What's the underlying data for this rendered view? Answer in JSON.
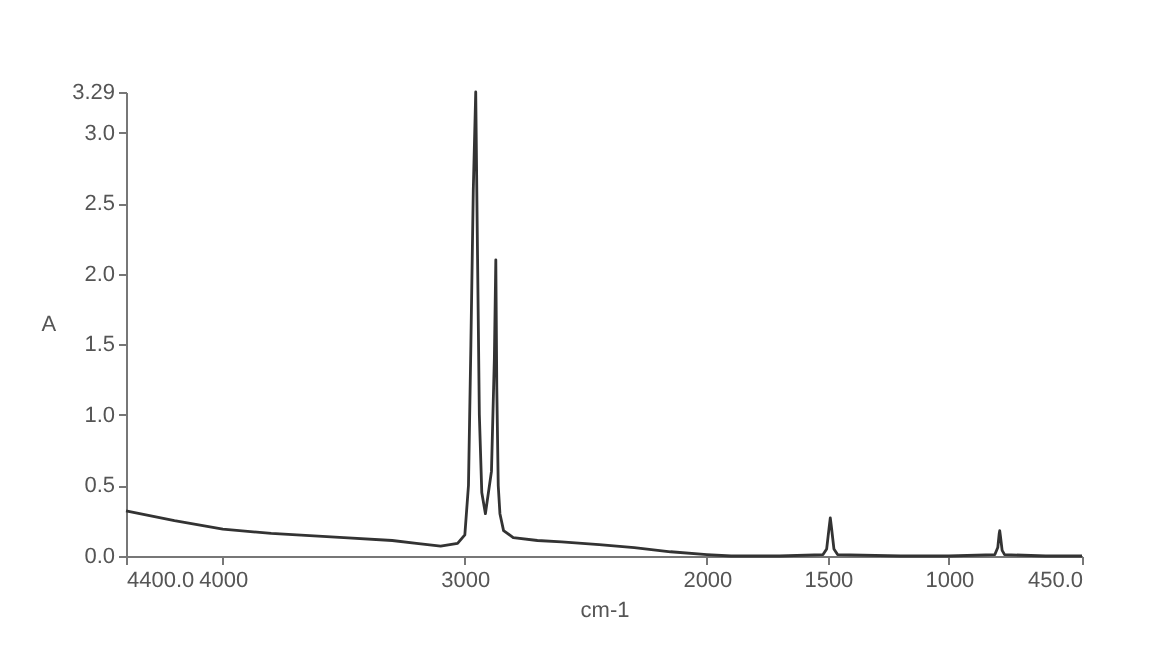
{
  "chart_data": {
    "type": "line",
    "xlabel": "cm-1",
    "ylabel": "A",
    "x": [
      4400,
      4200,
      4000,
      3800,
      3500,
      3300,
      3200,
      3100,
      3030,
      3000,
      2985,
      2975,
      2965,
      2955,
      2948,
      2940,
      2930,
      2915,
      2890,
      2878,
      2872,
      2868,
      2862,
      2855,
      2840,
      2800,
      2700,
      2600,
      2445,
      2300,
      2150,
      2000,
      1900,
      1700,
      1520,
      1505,
      1495,
      1490,
      1485,
      1475,
      1460,
      1200,
      1000,
      810,
      798,
      792,
      790,
      787,
      780,
      770,
      600,
      450
    ],
    "series": [
      {
        "color": "#333333",
        "values": [
          0.32,
          0.25,
          0.19,
          0.16,
          0.13,
          0.11,
          0.09,
          0.07,
          0.09,
          0.15,
          0.5,
          1.5,
          2.6,
          3.29,
          2.2,
          1.0,
          0.45,
          0.3,
          0.6,
          1.4,
          2.1,
          1.2,
          0.5,
          0.3,
          0.18,
          0.13,
          0.11,
          0.1,
          0.08,
          0.06,
          0.03,
          0.01,
          0,
          0,
          0.01,
          0.05,
          0.2,
          0.27,
          0.2,
          0.05,
          0.01,
          0,
          0,
          0.01,
          0.06,
          0.16,
          0.18,
          0.14,
          0.04,
          0.01,
          0,
          0
        ]
      }
    ],
    "xlim": [
      4400,
      450
    ],
    "xticks": [
      {
        "value": 4400,
        "label": "4400.0"
      },
      4000,
      3000,
      2000,
      1500,
      1000,
      {
        "value": 450,
        "label": "450.0"
      }
    ],
    "ylim": [
      0,
      3.29
    ],
    "yticks": [
      {
        "value": 0,
        "label": "0.0"
      },
      0.5,
      {
        "value": 1,
        "label": "1.0"
      },
      1.5,
      {
        "value": 2,
        "label": "2.0"
      },
      2.5,
      {
        "value": 3,
        "label": "3.0"
      },
      3.29
    ],
    "line_style": "solid"
  }
}
